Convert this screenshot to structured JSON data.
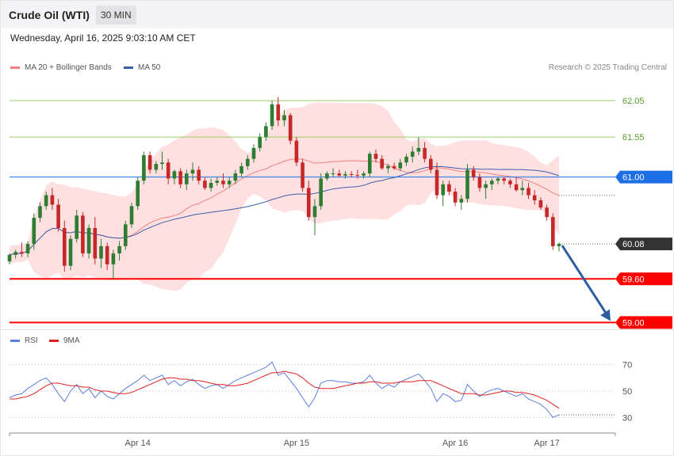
{
  "header": {
    "title": "Crude Oil (WTI)",
    "timeframe": "30 MIN"
  },
  "timestamp": "Wednesday, April 16, 2025 9:03:10 AM CET",
  "legend": {
    "ma20": "MA 20 + Bollinger Bands",
    "ma50": "MA 50",
    "rsi": "RSI",
    "rsi_ma": "9MA"
  },
  "copyright": "Research © 2025 Trading Central",
  "colors": {
    "up": "#2e7d32",
    "down": "#c62828",
    "band": "#ffd6d6",
    "ma20": "#f08080",
    "ma50": "#3a5ea8",
    "green_level": "#9ccc65",
    "blue_level": "#1e6fe6",
    "red_level": "#ff0000",
    "rsi": "#5b7fe0",
    "rsi_ma": "#e02020",
    "arrow": "#2d5fa0"
  },
  "chart_data": {
    "type": "candlestick",
    "instrument": "Crude Oil (WTI)",
    "interval": "30 MIN",
    "price_axis": {
      "range": [
        58.95,
        62.4
      ]
    },
    "levels": [
      {
        "value": "62.05",
        "style": "green"
      },
      {
        "value": "61.55",
        "style": "green"
      },
      {
        "value": "61.00",
        "style": "blue"
      },
      {
        "value": "60.08",
        "style": "last"
      },
      {
        "value": "59.60",
        "style": "red"
      },
      {
        "value": "59.00",
        "style": "red"
      }
    ],
    "time_labels": [
      "Apr 14",
      "Apr 15",
      "Apr 16",
      "Apr 17"
    ],
    "candles": [
      [
        59.84,
        59.95,
        59.8,
        59.93
      ],
      [
        59.93,
        60.0,
        59.88,
        59.97
      ],
      [
        59.97,
        60.1,
        59.9,
        59.95
      ],
      [
        59.95,
        60.12,
        59.9,
        60.08
      ],
      [
        60.08,
        60.5,
        60.0,
        60.44
      ],
      [
        60.44,
        60.65,
        60.38,
        60.6
      ],
      [
        60.6,
        60.8,
        60.55,
        60.75
      ],
      [
        60.75,
        60.85,
        60.55,
        60.62
      ],
      [
        60.62,
        60.7,
        60.25,
        60.3
      ],
      [
        60.3,
        60.4,
        59.7,
        59.78
      ],
      [
        59.78,
        60.2,
        59.72,
        60.15
      ],
      [
        60.15,
        60.55,
        60.1,
        60.47
      ],
      [
        60.47,
        60.52,
        59.9,
        59.95
      ],
      [
        59.95,
        60.35,
        59.88,
        60.3
      ],
      [
        60.3,
        60.45,
        59.8,
        59.88
      ],
      [
        59.88,
        60.15,
        59.75,
        60.05
      ],
      [
        60.05,
        60.1,
        59.72,
        59.8
      ],
      [
        59.8,
        60.0,
        59.6,
        59.95
      ],
      [
        59.95,
        60.12,
        59.85,
        60.05
      ],
      [
        60.05,
        60.4,
        60.0,
        60.35
      ],
      [
        60.35,
        60.65,
        60.3,
        60.6
      ],
      [
        60.6,
        61.0,
        60.55,
        60.95
      ],
      [
        60.95,
        61.35,
        60.9,
        61.3
      ],
      [
        61.3,
        61.35,
        61.05,
        61.1
      ],
      [
        61.1,
        61.22,
        61.05,
        61.18
      ],
      [
        61.18,
        61.35,
        61.1,
        61.2
      ],
      [
        61.2,
        61.25,
        60.9,
        60.98
      ],
      [
        60.98,
        61.1,
        60.9,
        61.08
      ],
      [
        61.08,
        61.12,
        60.85,
        60.9
      ],
      [
        60.9,
        61.1,
        60.82,
        61.05
      ],
      [
        61.05,
        61.2,
        60.95,
        61.1
      ],
      [
        61.1,
        61.15,
        60.9,
        60.95
      ],
      [
        60.95,
        61.0,
        60.82,
        60.85
      ],
      [
        60.85,
        60.98,
        60.8,
        60.92
      ],
      [
        60.92,
        61.0,
        60.88,
        60.95
      ],
      [
        60.95,
        61.05,
        60.85,
        60.9
      ],
      [
        60.9,
        61.0,
        60.85,
        60.95
      ],
      [
        60.95,
        61.1,
        60.9,
        61.05
      ],
      [
        61.05,
        61.2,
        61.0,
        61.15
      ],
      [
        61.15,
        61.3,
        61.1,
        61.25
      ],
      [
        61.25,
        61.45,
        61.2,
        61.4
      ],
      [
        61.4,
        61.6,
        61.35,
        61.55
      ],
      [
        61.55,
        61.75,
        61.5,
        61.7
      ],
      [
        61.7,
        62.05,
        61.65,
        62.0
      ],
      [
        62.0,
        62.1,
        61.7,
        61.78
      ],
      [
        61.78,
        61.92,
        61.7,
        61.85
      ],
      [
        61.85,
        61.88,
        61.45,
        61.5
      ],
      [
        61.5,
        61.55,
        61.15,
        61.2
      ],
      [
        61.2,
        61.25,
        60.8,
        60.85
      ],
      [
        60.85,
        60.95,
        60.4,
        60.45
      ],
      [
        60.45,
        60.7,
        60.2,
        60.6
      ],
      [
        60.6,
        61.05,
        60.55,
        60.98
      ],
      [
        60.98,
        61.08,
        60.95,
        61.05
      ],
      [
        61.05,
        61.12,
        61.0,
        61.05
      ],
      [
        61.05,
        61.1,
        61.0,
        61.02
      ],
      [
        61.02,
        61.08,
        60.98,
        61.04
      ],
      [
        61.04,
        61.08,
        61.0,
        61.03
      ],
      [
        61.03,
        61.1,
        60.98,
        61.02
      ],
      [
        61.02,
        61.08,
        60.98,
        61.05
      ],
      [
        61.05,
        61.35,
        61.0,
        61.32
      ],
      [
        61.32,
        61.38,
        61.2,
        61.25
      ],
      [
        61.25,
        61.3,
        61.1,
        61.12
      ],
      [
        61.12,
        61.18,
        61.05,
        61.15
      ],
      [
        61.15,
        61.2,
        61.1,
        61.12
      ],
      [
        61.12,
        61.25,
        61.08,
        61.2
      ],
      [
        61.2,
        61.32,
        61.15,
        61.28
      ],
      [
        61.28,
        61.42,
        61.2,
        61.35
      ],
      [
        61.35,
        61.55,
        61.3,
        61.4
      ],
      [
        61.4,
        61.48,
        61.2,
        61.25
      ],
      [
        61.25,
        61.3,
        61.05,
        61.1
      ],
      [
        61.1,
        61.2,
        60.7,
        60.75
      ],
      [
        60.75,
        60.95,
        60.6,
        60.9
      ],
      [
        60.9,
        60.95,
        60.75,
        60.8
      ],
      [
        60.8,
        60.85,
        60.6,
        60.65
      ],
      [
        60.65,
        60.75,
        60.55,
        60.7
      ],
      [
        60.7,
        61.18,
        60.65,
        61.1
      ],
      [
        61.1,
        61.15,
        60.95,
        61.0
      ],
      [
        61.0,
        61.05,
        60.8,
        60.85
      ],
      [
        60.85,
        60.95,
        60.7,
        60.9
      ],
      [
        60.9,
        60.98,
        60.82,
        60.95
      ],
      [
        60.95,
        61.0,
        60.9,
        60.98
      ],
      [
        60.98,
        61.0,
        60.9,
        60.95
      ],
      [
        60.95,
        60.98,
        60.85,
        60.9
      ],
      [
        60.9,
        61.0,
        60.8,
        60.82
      ],
      [
        60.82,
        60.95,
        60.75,
        60.85
      ],
      [
        60.85,
        60.92,
        60.7,
        60.75
      ],
      [
        60.75,
        60.82,
        60.62,
        60.68
      ],
      [
        60.68,
        60.72,
        60.55,
        60.58
      ],
      [
        60.58,
        60.62,
        60.4,
        60.45
      ],
      [
        60.45,
        60.5,
        60.0,
        60.05
      ],
      [
        60.05,
        60.1,
        59.98,
        60.08
      ]
    ],
    "moving_averages": [
      {
        "name": "MA 20 + Bollinger Bands",
        "period": 20
      },
      {
        "name": "MA 50",
        "period": 50
      }
    ],
    "bollinger_std": 2,
    "projection": {
      "from": 60.08,
      "to": 59.0
    },
    "rsi": {
      "axis_ticks": [
        70,
        50,
        30
      ],
      "range": [
        20,
        80
      ],
      "values": [
        45,
        47,
        48,
        52,
        55,
        58,
        60,
        55,
        48,
        42,
        50,
        55,
        48,
        52,
        45,
        50,
        46,
        44,
        48,
        52,
        55,
        58,
        62,
        58,
        60,
        62,
        55,
        58,
        54,
        57,
        59,
        55,
        52,
        54,
        55,
        52,
        55,
        58,
        60,
        62,
        64,
        66,
        68,
        72,
        62,
        64,
        58,
        52,
        45,
        38,
        45,
        56,
        58,
        58,
        57,
        57,
        56,
        56,
        57,
        62,
        56,
        52,
        55,
        53,
        57,
        59,
        61,
        63,
        58,
        52,
        42,
        48,
        46,
        42,
        43,
        55,
        50,
        46,
        49,
        51,
        52,
        50,
        48,
        46,
        48,
        44,
        42,
        40,
        36,
        30,
        32
      ],
      "ma_values": [
        44,
        44,
        45,
        46,
        48,
        51,
        54,
        56,
        56,
        55,
        54,
        54,
        53,
        53,
        51,
        50,
        50,
        49,
        48,
        48,
        49,
        51,
        53,
        55,
        57,
        59,
        60,
        60,
        59,
        59,
        58,
        58,
        57,
        56,
        55,
        55,
        54,
        54,
        55,
        56,
        58,
        60,
        62,
        64,
        64,
        65,
        64,
        63,
        60,
        56,
        53,
        52,
        52,
        52,
        53,
        54,
        55,
        56,
        56,
        57,
        57,
        56,
        56,
        56,
        57,
        57,
        57,
        58,
        58,
        58,
        56,
        54,
        52,
        50,
        48,
        48,
        48,
        47,
        47,
        48,
        49,
        50,
        50,
        49,
        49,
        48,
        47,
        45,
        43,
        40,
        37
      ]
    }
  }
}
